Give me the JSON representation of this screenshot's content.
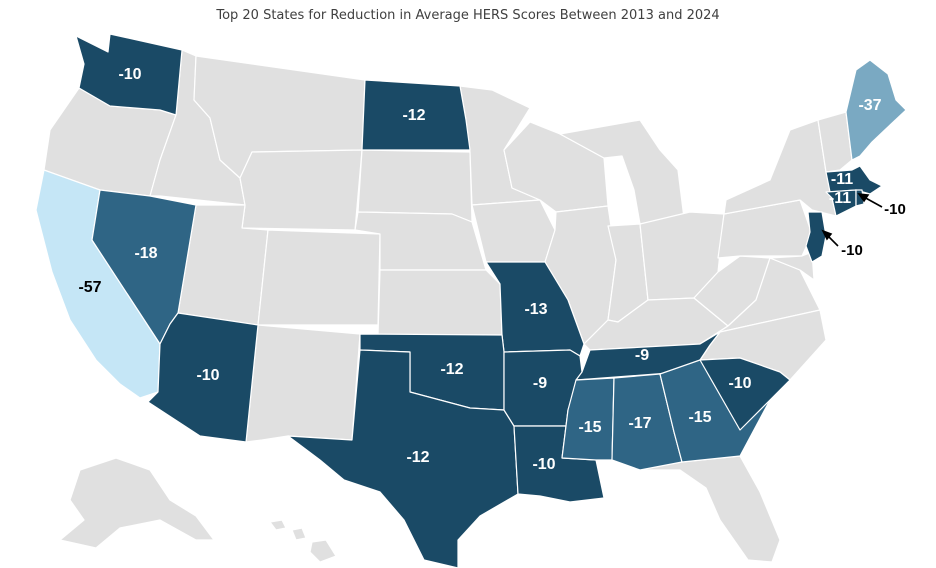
{
  "title": "Top 20 States for Reduction in Average HERS Scores Between 2013 and 2024",
  "colors": {
    "base": "#e0e0e0",
    "dark": "#1a4a66",
    "mid": "#2f6585",
    "light": "#7aa9c2",
    "lightest": "#c5e6f6"
  },
  "states": {
    "WA": {
      "value": "-10",
      "fill": "dark"
    },
    "ND": {
      "value": "-12",
      "fill": "dark"
    },
    "ME": {
      "value": "-37",
      "fill": "light"
    },
    "CA": {
      "value": "-57",
      "fill": "lightest"
    },
    "NV": {
      "value": "-18",
      "fill": "mid"
    },
    "AZ": {
      "value": "-10",
      "fill": "dark"
    },
    "MO": {
      "value": "-13",
      "fill": "dark"
    },
    "OK": {
      "value": "-12",
      "fill": "dark"
    },
    "TX": {
      "value": "-12",
      "fill": "dark"
    },
    "AR": {
      "value": "-9",
      "fill": "dark"
    },
    "LA": {
      "value": "-10",
      "fill": "dark"
    },
    "TN": {
      "value": "-9",
      "fill": "dark"
    },
    "MS": {
      "value": "-15",
      "fill": "mid"
    },
    "AL": {
      "value": "-17",
      "fill": "mid"
    },
    "GA": {
      "value": "-15",
      "fill": "mid"
    },
    "SC": {
      "value": "-10",
      "fill": "dark"
    },
    "MA": {
      "value": "-11",
      "fill": "dark"
    },
    "CT": {
      "value": "-11",
      "fill": "dark"
    },
    "RI": {
      "value": "-10",
      "fill": "dark"
    },
    "NJ": {
      "value": "-10",
      "fill": "dark"
    }
  }
}
